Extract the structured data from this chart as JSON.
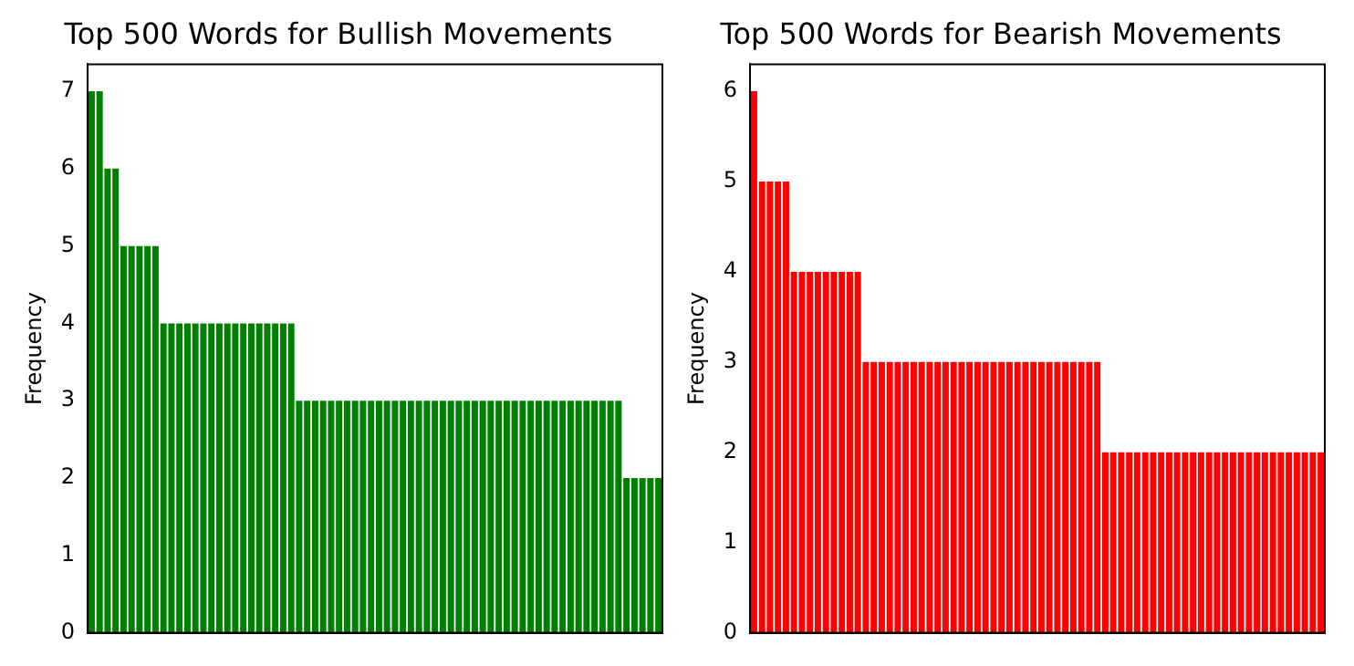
{
  "chart_data": [
    {
      "type": "bar",
      "title": "Top 500 Words for Bullish Movements",
      "ylabel": "Frequency",
      "color": "#008000",
      "grid": false,
      "legend": false,
      "tick_labels": "y",
      "ylim": [
        0,
        7.35
      ],
      "yticks": [
        0,
        1,
        2,
        3,
        4,
        5,
        6,
        7
      ],
      "categories": [
        null,
        null,
        null,
        null,
        null,
        null,
        null,
        null,
        null,
        null,
        null,
        null,
        null,
        null,
        null,
        null,
        null,
        null,
        null,
        null,
        null,
        null,
        null,
        null,
        null,
        null,
        null,
        null,
        null,
        null,
        null,
        null,
        null,
        null,
        null,
        null,
        null,
        null,
        null,
        null,
        null,
        null,
        null,
        null,
        null,
        null,
        null,
        null,
        null,
        null,
        null,
        null,
        null,
        null,
        null,
        null,
        null,
        null,
        null,
        null,
        null,
        null,
        null,
        null,
        null,
        null,
        null,
        null,
        null,
        null,
        null,
        null
      ],
      "values": [
        7,
        7,
        6,
        6,
        5,
        5,
        5,
        5,
        5,
        4,
        4,
        4,
        4,
        4,
        4,
        4,
        4,
        4,
        4,
        4,
        4,
        4,
        4,
        4,
        4,
        4,
        3,
        3,
        3,
        3,
        3,
        3,
        3,
        3,
        3,
        3,
        3,
        3,
        3,
        3,
        3,
        3,
        3,
        3,
        3,
        3,
        3,
        3,
        3,
        3,
        3,
        3,
        3,
        3,
        3,
        3,
        3,
        3,
        3,
        3,
        3,
        3,
        3,
        3,
        3,
        3,
        3,
        2,
        2,
        2,
        2,
        2
      ]
    },
    {
      "type": "bar",
      "title": "Top 500 Words for Bearish Movements",
      "ylabel": "Frequency",
      "color": "#ff0000",
      "grid": false,
      "legend": false,
      "tick_labels": "y",
      "ylim": [
        0,
        6.3
      ],
      "yticks": [
        0,
        1,
        2,
        3,
        4,
        5,
        6
      ],
      "categories": [
        null,
        null,
        null,
        null,
        null,
        null,
        null,
        null,
        null,
        null,
        null,
        null,
        null,
        null,
        null,
        null,
        null,
        null,
        null,
        null,
        null,
        null,
        null,
        null,
        null,
        null,
        null,
        null,
        null,
        null,
        null,
        null,
        null,
        null,
        null,
        null,
        null,
        null,
        null,
        null,
        null,
        null,
        null,
        null,
        null,
        null,
        null,
        null,
        null,
        null,
        null,
        null,
        null,
        null,
        null,
        null,
        null,
        null,
        null,
        null,
        null,
        null,
        null,
        null,
        null,
        null,
        null,
        null,
        null,
        null,
        null,
        null
      ],
      "values": [
        6,
        5,
        5,
        5,
        5,
        4,
        4,
        4,
        4,
        4,
        4,
        4,
        4,
        4,
        3,
        3,
        3,
        3,
        3,
        3,
        3,
        3,
        3,
        3,
        3,
        3,
        3,
        3,
        3,
        3,
        3,
        3,
        3,
        3,
        3,
        3,
        3,
        3,
        3,
        3,
        3,
        3,
        3,
        3,
        2,
        2,
        2,
        2,
        2,
        2,
        2,
        2,
        2,
        2,
        2,
        2,
        2,
        2,
        2,
        2,
        2,
        2,
        2,
        2,
        2,
        2,
        2,
        2,
        2,
        2,
        2,
        2
      ]
    }
  ]
}
